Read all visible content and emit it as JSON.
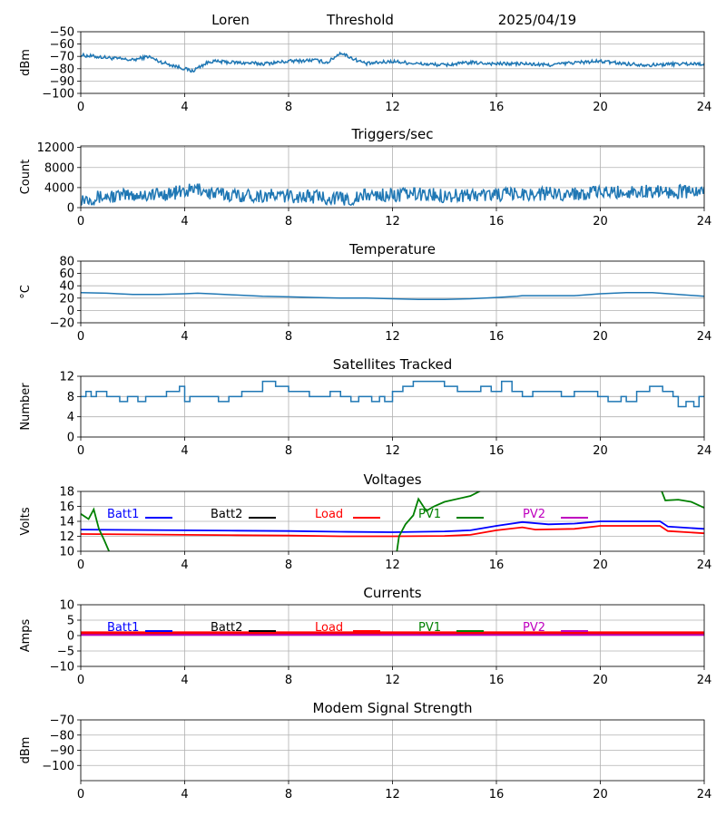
{
  "header": {
    "station": "Loren",
    "mode": "Threshold",
    "date": "2025/04/19"
  },
  "legend_labels": [
    "Batt1",
    "Batt2",
    "Load",
    "PV1",
    "PV2"
  ],
  "colors": {
    "series": "#1f77b4",
    "legend": {
      "Batt1": "#0000ff",
      "Batt2": "#000000",
      "Load": "#ff0000",
      "PV1": "#008000",
      "PV2": "#bf00bf"
    },
    "grid": "#b0b0b0"
  },
  "chart_data": [
    {
      "id": "threshold",
      "type": "line",
      "title": "",
      "ylabel": "dBm",
      "xlabel": "",
      "xlim": [
        0,
        24
      ],
      "ylim": [
        -100,
        -50
      ],
      "xticks": [
        0,
        4,
        8,
        12,
        16,
        20,
        24
      ],
      "yticks": [
        -100,
        -90,
        -80,
        -70,
        -60,
        -50
      ],
      "ytick_labels": [
        "−100",
        "−90",
        "−80",
        "−70",
        "−60",
        "−50"
      ],
      "grid": true,
      "noise": 1.4,
      "series": [
        {
          "color": "#1f77b4",
          "points": [
            [
              0,
              -69
            ],
            [
              1,
              -71
            ],
            [
              2,
              -73
            ],
            [
              2.6,
              -70
            ],
            [
              3,
              -74
            ],
            [
              3.5,
              -77
            ],
            [
              4,
              -80
            ],
            [
              4.3,
              -82
            ],
            [
              4.6,
              -78
            ],
            [
              5,
              -74
            ],
            [
              6,
              -75
            ],
            [
              7,
              -76
            ],
            [
              8,
              -74
            ],
            [
              9,
              -73
            ],
            [
              9.5,
              -75
            ],
            [
              10,
              -67
            ],
            [
              10.5,
              -72
            ],
            [
              11,
              -76
            ],
            [
              12,
              -74
            ],
            [
              13,
              -76
            ],
            [
              14,
              -77
            ],
            [
              15,
              -75
            ],
            [
              16,
              -76
            ],
            [
              17,
              -76
            ],
            [
              18,
              -77
            ],
            [
              19,
              -75
            ],
            [
              20,
              -74
            ],
            [
              21,
              -76
            ],
            [
              22,
              -77
            ],
            [
              23,
              -76
            ],
            [
              24,
              -76
            ]
          ]
        }
      ]
    },
    {
      "id": "triggers",
      "type": "line",
      "title": "Triggers/sec",
      "ylabel": "Count",
      "xlabel": "",
      "xlim": [
        0,
        24
      ],
      "ylim": [
        0,
        12300
      ],
      "xticks": [
        0,
        4,
        8,
        12,
        16,
        20,
        24
      ],
      "yticks": [
        0,
        4000,
        8000,
        12000
      ],
      "ytick_labels": [
        "0",
        "4000",
        "8000",
        "12000"
      ],
      "grid": true,
      "noise": 1400,
      "clip_min": 0,
      "series": [
        {
          "color": "#1f77b4",
          "points": [
            [
              0,
              1800
            ],
            [
              1,
              2200
            ],
            [
              2,
              2500
            ],
            [
              3,
              2600
            ],
            [
              4,
              3200
            ],
            [
              4.6,
              3800
            ],
            [
              5,
              2800
            ],
            [
              6,
              2500
            ],
            [
              7,
              2400
            ],
            [
              8,
              2300
            ],
            [
              9,
              2200
            ],
            [
              9.5,
              2000
            ],
            [
              10,
              1800
            ],
            [
              10.5,
              1600
            ],
            [
              11,
              2500
            ],
            [
              12,
              2500
            ],
            [
              13,
              2700
            ],
            [
              14,
              2400
            ],
            [
              15,
              2500
            ],
            [
              16,
              2600
            ],
            [
              17,
              2700
            ],
            [
              18,
              2800
            ],
            [
              19,
              2800
            ],
            [
              20,
              3000
            ],
            [
              21,
              3100
            ],
            [
              22,
              3300
            ],
            [
              23,
              3200
            ],
            [
              24,
              3100
            ]
          ]
        }
      ]
    },
    {
      "id": "temperature",
      "type": "line",
      "title": "Temperature",
      "ylabel": "°C",
      "xlabel": "",
      "xlim": [
        0,
        24
      ],
      "ylim": [
        -20,
        80
      ],
      "xticks": [
        0,
        4,
        8,
        12,
        16,
        20,
        24
      ],
      "yticks": [
        -20,
        0,
        20,
        40,
        60,
        80
      ],
      "ytick_labels": [
        "−20",
        "0",
        "20",
        "40",
        "60",
        "80"
      ],
      "grid": true,
      "noise": 0,
      "series": [
        {
          "color": "#1f77b4",
          "points": [
            [
              0,
              29
            ],
            [
              1,
              28
            ],
            [
              2,
              26
            ],
            [
              3,
              26
            ],
            [
              4,
              27
            ],
            [
              4.5,
              28
            ],
            [
              5,
              27
            ],
            [
              6,
              25
            ],
            [
              7,
              23
            ],
            [
              8,
              22
            ],
            [
              9,
              21
            ],
            [
              10,
              20
            ],
            [
              11,
              20
            ],
            [
              12,
              19
            ],
            [
              13,
              18
            ],
            [
              14,
              18
            ],
            [
              15,
              19
            ],
            [
              16,
              21
            ],
            [
              16.8,
              23
            ],
            [
              17,
              24
            ],
            [
              18,
              24
            ],
            [
              19,
              24
            ],
            [
              20,
              27
            ],
            [
              21,
              29
            ],
            [
              22,
              29
            ],
            [
              23,
              26
            ],
            [
              24,
              23
            ]
          ]
        }
      ]
    },
    {
      "id": "satellites",
      "type": "line",
      "step": true,
      "title": "Satellites Tracked",
      "ylabel": "Number",
      "xlabel": "",
      "xlim": [
        0,
        24
      ],
      "ylim": [
        0,
        12
      ],
      "xticks": [
        0,
        4,
        8,
        12,
        16,
        20,
        24
      ],
      "yticks": [
        0,
        4,
        8,
        12
      ],
      "ytick_labels": [
        "0",
        "4",
        "8",
        "12"
      ],
      "grid": true,
      "noise": 0,
      "series": [
        {
          "color": "#1f77b4",
          "points": [
            [
              0,
              8
            ],
            [
              0.2,
              9
            ],
            [
              0.4,
              8
            ],
            [
              0.6,
              9
            ],
            [
              1.0,
              8
            ],
            [
              1.5,
              7
            ],
            [
              1.8,
              8
            ],
            [
              2.2,
              7
            ],
            [
              2.5,
              8
            ],
            [
              2.8,
              8
            ],
            [
              3.0,
              8
            ],
            [
              3.3,
              9
            ],
            [
              3.6,
              9
            ],
            [
              3.8,
              10
            ],
            [
              4.0,
              7
            ],
            [
              4.2,
              8
            ],
            [
              5.0,
              8
            ],
            [
              5.3,
              7
            ],
            [
              5.7,
              8
            ],
            [
              6.0,
              8
            ],
            [
              6.2,
              9
            ],
            [
              7.0,
              11
            ],
            [
              7.5,
              10
            ],
            [
              8.0,
              9
            ],
            [
              8.5,
              9
            ],
            [
              8.8,
              8
            ],
            [
              9.2,
              8
            ],
            [
              9.6,
              9
            ],
            [
              10.0,
              8
            ],
            [
              10.4,
              7
            ],
            [
              10.7,
              8
            ],
            [
              11.0,
              8
            ],
            [
              11.2,
              7
            ],
            [
              11.5,
              8
            ],
            [
              11.7,
              7
            ],
            [
              12.0,
              9
            ],
            [
              12.4,
              10
            ],
            [
              12.8,
              11
            ],
            [
              13.5,
              11
            ],
            [
              14.0,
              10
            ],
            [
              14.5,
              9
            ],
            [
              15.0,
              9
            ],
            [
              15.4,
              10
            ],
            [
              15.8,
              9
            ],
            [
              16.2,
              11
            ],
            [
              16.6,
              9
            ],
            [
              17.0,
              8
            ],
            [
              17.4,
              9
            ],
            [
              18.0,
              9
            ],
            [
              18.5,
              8
            ],
            [
              19.0,
              9
            ],
            [
              19.5,
              9
            ],
            [
              19.9,
              8
            ],
            [
              20.3,
              7
            ],
            [
              20.8,
              8
            ],
            [
              21.0,
              7
            ],
            [
              21.4,
              9
            ],
            [
              21.9,
              10
            ],
            [
              22.4,
              9
            ],
            [
              22.8,
              8
            ],
            [
              23.0,
              6
            ],
            [
              23.3,
              7
            ],
            [
              23.6,
              6
            ],
            [
              23.8,
              8
            ],
            [
              24,
              8
            ]
          ]
        }
      ]
    },
    {
      "id": "voltages",
      "type": "line",
      "title": "Voltages",
      "ylabel": "Volts",
      "xlabel": "",
      "xlim": [
        0,
        24
      ],
      "ylim": [
        10,
        18
      ],
      "xticks": [
        0,
        4,
        8,
        12,
        16,
        20,
        24
      ],
      "yticks": [
        10,
        12,
        14,
        16,
        18
      ],
      "ytick_labels": [
        "10",
        "12",
        "14",
        "16",
        "18"
      ],
      "grid": true,
      "noise": 0,
      "legend": true,
      "series": [
        {
          "name": "Batt1",
          "color": "#0000ff",
          "points": [
            [
              0,
              12.9
            ],
            [
              2,
              12.85
            ],
            [
              4,
              12.8
            ],
            [
              6,
              12.75
            ],
            [
              8,
              12.7
            ],
            [
              10,
              12.6
            ],
            [
              12,
              12.55
            ],
            [
              14,
              12.65
            ],
            [
              15,
              12.8
            ],
            [
              16,
              13.4
            ],
            [
              17,
              13.9
            ],
            [
              18,
              13.6
            ],
            [
              19,
              13.7
            ],
            [
              20,
              14.0
            ],
            [
              21,
              14.0
            ],
            [
              22.3,
              14.0
            ],
            [
              22.6,
              13.3
            ],
            [
              24,
              13.0
            ]
          ]
        },
        {
          "name": "Load",
          "color": "#ff0000",
          "points": [
            [
              0,
              12.3
            ],
            [
              2,
              12.25
            ],
            [
              4,
              12.2
            ],
            [
              6,
              12.15
            ],
            [
              8,
              12.1
            ],
            [
              10,
              12.0
            ],
            [
              12,
              12.0
            ],
            [
              14,
              12.05
            ],
            [
              15,
              12.2
            ],
            [
              16,
              12.8
            ],
            [
              17,
              13.2
            ],
            [
              17.5,
              12.9
            ],
            [
              19,
              13.0
            ],
            [
              20,
              13.4
            ],
            [
              21,
              13.4
            ],
            [
              22.3,
              13.4
            ],
            [
              22.6,
              12.7
            ],
            [
              24,
              12.4
            ]
          ]
        },
        {
          "name": "PV1",
          "color": "#008000",
          "points": [
            [
              0,
              15.0
            ],
            [
              0.3,
              14.3
            ],
            [
              0.5,
              15.6
            ],
            [
              0.7,
              13.0
            ],
            [
              0.9,
              11.5
            ],
            [
              1.15,
              9.5
            ]
          ],
          "extra": [
            [
              [
                12.15,
                9.5
              ],
              [
                12.25,
                12.0
              ],
              [
                12.5,
                13.6
              ],
              [
                12.8,
                14.8
              ],
              [
                13.0,
                17.0
              ],
              [
                13.3,
                15.4
              ],
              [
                13.6,
                16.0
              ],
              [
                14.0,
                16.6
              ],
              [
                15.0,
                17.4
              ],
              [
                15.4,
                18.1
              ],
              [
                15.8,
                18.6
              ]
            ],
            [
              [
                22.3,
                18.6
              ],
              [
                22.5,
                16.8
              ],
              [
                23.0,
                16.9
              ],
              [
                23.5,
                16.6
              ],
              [
                24,
                15.8
              ]
            ]
          ]
        }
      ]
    },
    {
      "id": "currents",
      "type": "line",
      "title": "Currents",
      "ylabel": "Amps",
      "xlabel": "",
      "xlim": [
        0,
        24
      ],
      "ylim": [
        -10,
        10
      ],
      "xticks": [
        0,
        4,
        8,
        12,
        16,
        20,
        24
      ],
      "yticks": [
        -10,
        -5,
        0,
        5,
        10
      ],
      "ytick_labels": [
        "−10",
        "−5",
        "0",
        "5",
        "10"
      ],
      "grid": true,
      "noise": 0,
      "legend": true,
      "series": [
        {
          "name": "Batt1",
          "color": "#0000ff",
          "points": [
            [
              0,
              0.4
            ],
            [
              24,
              0.4
            ]
          ]
        },
        {
          "name": "PV2",
          "color": "#bf00bf",
          "points": [
            [
              0,
              0.2
            ],
            [
              24,
              0.2
            ]
          ]
        },
        {
          "name": "Load",
          "color": "#ff0000",
          "points": [
            [
              0,
              0.9
            ],
            [
              24,
              0.9
            ]
          ]
        }
      ]
    },
    {
      "id": "modem",
      "type": "line",
      "title": "Modem Signal Strength",
      "ylabel": "dBm",
      "xlabel": "",
      "xlim": [
        0,
        24
      ],
      "ylim": [
        -110,
        -70
      ],
      "xticks": [
        0,
        4,
        8,
        12,
        16,
        20,
        24
      ],
      "yticks": [
        -100,
        -90,
        -80,
        -70
      ],
      "ytick_labels": [
        "−100",
        "−90",
        "−80",
        "−70"
      ],
      "grid": true,
      "noise": 0,
      "series": []
    }
  ]
}
